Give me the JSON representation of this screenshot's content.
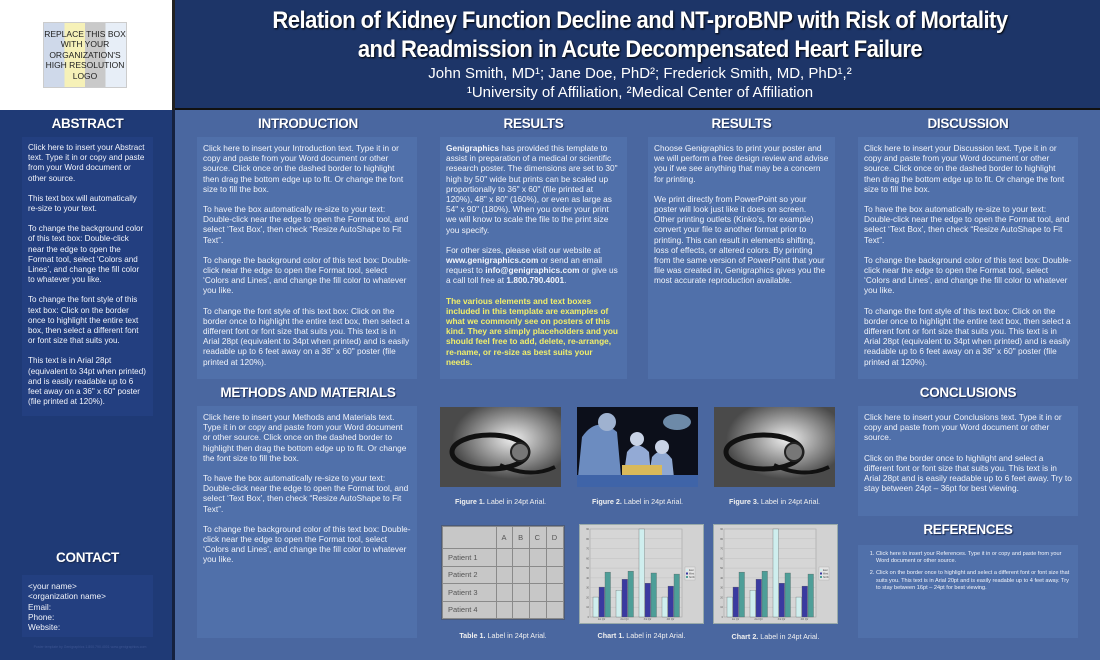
{
  "header": {
    "logo_text": "REPLACE THIS BOX WITH YOUR ORGANIZATION'S HIGH RESOLUTION LOGO",
    "title_line1": "Relation of Kidney Function Decline and NT-proBNP with Risk of Mortality",
    "title_line2": "and Readmission in Acute Decompensated Heart Failure",
    "authors": "John Smith, MD¹; Jane Doe, PhD²; Frederick Smith, MD, PhD¹,²",
    "affiliations": "¹University of Affiliation, ²Medical Center of Affiliation"
  },
  "abstract": {
    "heading": "ABSTRACT",
    "paragraphs": [
      "Click here to insert your Abstract text. Type it in or copy and paste from your Word document or other source.",
      "This text box will automatically re-size to your text.",
      "To change the background color of this text box: Double-click near the edge to open the Format tool, select ‘Colors and Lines’, and change the fill color to whatever you like.",
      "To change the font style of this text box: Click on the border once to highlight the entire text box, then select a different font or font size that suits you.",
      "This text is in Arial 28pt (equivalent to 34pt when printed) and is easily readable up to 6 feet away on a 36\" x 60\" poster (file printed at 120%)."
    ]
  },
  "contact": {
    "heading": "CONTACT",
    "lines": [
      "<your name>",
      "<organization name>",
      "Email:",
      "Phone:",
      "Website:"
    ]
  },
  "introduction": {
    "heading": "INTRODUCTION",
    "paragraphs": [
      "Click here to insert your Introduction text. Type it in or copy and paste from your Word document or other source. Click once on the dashed border to highlight then drag the bottom edge up to fit. Or change the font size to fill the box.",
      "To have the box automatically re-size to your text: Double-click near the edge to open the Format tool, and select ‘Text Box’, then check “Resize AutoShape to Fit Text”.",
      "To change the background color of this text box: Double-click near the edge to open the Format tool, select ‘Colors and Lines’, and change the fill color to whatever you like.",
      "To change the font style of this text box: Click on the border once to highlight the entire text box, then select a different font or font size that suits you. This text is in Arial 28pt (equivalent to 34pt when printed) and is easily readable up to 6 feet away on a 36\" x 60\" poster (file printed at 120%)."
    ]
  },
  "methods": {
    "heading": "METHODS AND MATERIALS",
    "paragraphs": [
      "Click here to insert your Methods and Materials text. Type it in or copy and paste from your Word document or other source. Click once on the dashed border to highlight then drag the bottom edge up to fit. Or change the font size to fill the box.",
      "To have the box automatically re-size to your text: Double-click near the edge to open the Format tool, and select ‘Text Box’, then check “Resize AutoShape to Fit Text”.",
      "To change the background color of this text box: Double-click near the edge to open the Format tool, select ‘Colors and Lines’, and change the fill color to whatever you like."
    ]
  },
  "results1": {
    "heading": "RESULTS",
    "p1_bold": "Genigraphics",
    "p1": " has provided this template to assist in preparation of a medical or scientific research poster. The dimensions are set to 30\" high by 50\" wide but prints can be scaled up proportionally to 36\" x 60\" (file printed at 120%), 48\" x 80\" (160%), or even as large as 54\" x 90\" (180%). When you order your print we will know to scale the file to the print size you specify.",
    "p2a": "For other sizes, please visit our website at ",
    "p2_web": "www.genigraphics.com",
    "p2b": " or send an email request to ",
    "p2_email": "info@genigraphics.com",
    "p2c": " or give us a call toll free at ",
    "p2_phone": "1.800.790.4001",
    "p2d": ".",
    "highlight": "The various elements and text boxes included in this template are examples of what we commonly see on posters of this kind. They are simply placeholders and you should feel free to add, delete, re-arrange, re-name, or re-size as best suits your needs."
  },
  "results2": {
    "heading": "RESULTS",
    "paragraphs": [
      "Choose Genigraphics to print your poster and we will perform a free design review and advise you if we see anything that may be a concern for printing.",
      "We print directly from PowerPoint so your poster will look just like it does on screen. Other printing outlets (Kinko’s, for example) convert your file to another format prior to printing. This can result in elements shifting, loss of effects, or altered colors. By printing from the same version of PowerPoint that your file was created in, Genigraphics gives you the most accurate reproduction available."
    ]
  },
  "discussion": {
    "heading": "DISCUSSION",
    "paragraphs": [
      "Click here to insert your Discussion text. Type it in or copy and paste from your Word document or other source. Click once on the dashed border to highlight then drag the bottom edge up to fit. Or change the font size to fill the box.",
      "To have the box automatically re-size to your text: Double-click near the edge to open the Format tool, and select ‘Text Box’, then check “Resize AutoShape to Fit Text”.",
      "To change the background color of this text box: Double-click near the edge to open the Format tool, select ‘Colors and Lines’, and change the fill color to whatever you like.",
      "To change the font style of this text box: Click on the border once to highlight the entire text box, then select a different font or font size that suits you. This text is in Arial 28pt (equivalent to 34pt when printed) and is easily readable up to 6 feet away on a 36\" x 60\" poster (file printed at 120%)."
    ]
  },
  "conclusions": {
    "heading": "CONCLUSIONS",
    "paragraphs": [
      "Click here to insert your Conclusions text. Type it in or copy and paste from your Word document or other source.",
      "Click on the border once to highlight and select a different font or font size that suits you. This text is in Arial 28pt and is easily readable up to 6 feet away. Try to stay between 24pt – 36pt for best viewing."
    ]
  },
  "references": {
    "heading": "REFERENCES",
    "items": [
      "Click here to insert your References. Type it in or copy and paste from your Word document or other source.",
      "Click on the border once to highlight and select a different font or font size that suits you. This text is in Arial 20pt and is easily readable up to 4 feet away. Try to stay between 16pt – 24pt for best viewing."
    ]
  },
  "figures": [
    {
      "bold": "Figure 1.",
      "label": " Label in 24pt Arial.",
      "image": "stethoscope"
    },
    {
      "bold": "Figure 2.",
      "label": " Label in 24pt Arial.",
      "image": "surgery-team"
    },
    {
      "bold": "Figure 3.",
      "label": " Label in 24pt Arial.",
      "image": "stethoscope"
    }
  ],
  "table": {
    "bold": "Table 1.",
    "label": " Label in 24pt Arial.",
    "columns": [
      "",
      "A",
      "B",
      "C",
      "D"
    ],
    "rows": [
      "Patient 1",
      "Patient 2",
      "Patient 3",
      "Patient 4"
    ]
  },
  "chart_data": [
    {
      "type": "bar",
      "caption_bold": "Chart 1.",
      "caption": " Label in 24pt Arial.",
      "categories": [
        "1st Qtr",
        "2nd Qtr",
        "3rd Qtr",
        "4th Qtr"
      ],
      "ylim": [
        0,
        90
      ],
      "legend": "right",
      "series": [
        {
          "name": "East",
          "color": "#cfeeee",
          "values": [
            20.4,
            27.4,
            90,
            20.4
          ]
        },
        {
          "name": "West",
          "color": "#3a3aa0",
          "values": [
            30.6,
            38.6,
            34.6,
            31.6
          ]
        },
        {
          "name": "North",
          "color": "#4e9e98",
          "values": [
            45.9,
            46.9,
            45,
            43.9
          ]
        }
      ]
    },
    {
      "type": "bar",
      "caption_bold": "Chart 2.",
      "caption": " Label in 24pt Arial.",
      "categories": [
        "1st Qtr",
        "2nd Qtr",
        "3rd Qtr",
        "4th Qtr"
      ],
      "ylim": [
        0,
        90
      ],
      "legend": "right",
      "series": [
        {
          "name": "East",
          "color": "#cfeeee",
          "values": [
            20.4,
            27.4,
            90,
            20.4
          ]
        },
        {
          "name": "West",
          "color": "#3a3aa0",
          "values": [
            30.6,
            38.6,
            34.6,
            31.6
          ]
        },
        {
          "name": "North",
          "color": "#4e9e98",
          "values": [
            45.9,
            46.9,
            45,
            43.9
          ]
        }
      ]
    }
  ],
  "footer": {
    "fine_print": "Poster template by Genigraphics 1.800.790.4001 www.genigraphics.com"
  }
}
